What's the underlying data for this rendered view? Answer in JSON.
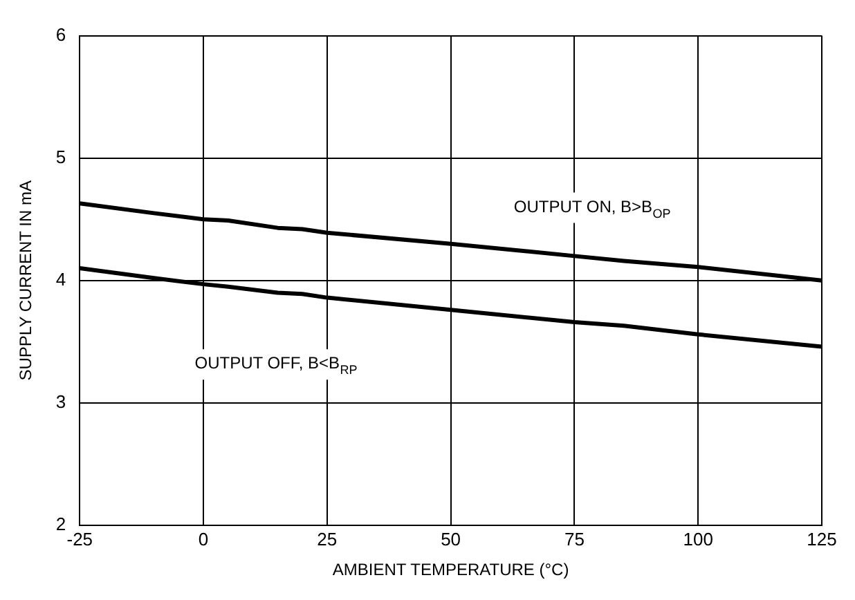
{
  "chart_data": {
    "type": "line",
    "xlabel": "AMBIENT TEMPERATURE (°C)",
    "ylabel": "SUPPLY CURRENT IN mA",
    "x": [
      -25,
      -10,
      0,
      5,
      15,
      20,
      25,
      50,
      75,
      85,
      100,
      125
    ],
    "series": [
      {
        "color": "#000000",
        "values": [
          4.63,
          4.55,
          4.5,
          4.49,
          4.43,
          4.42,
          4.39,
          4.3,
          4.2,
          4.16,
          4.11,
          4.0
        ]
      },
      {
        "color": "#000000",
        "values": [
          4.1,
          4.02,
          3.97,
          3.95,
          3.9,
          3.89,
          3.86,
          3.76,
          3.66,
          3.63,
          3.56,
          3.46
        ]
      }
    ],
    "xlim": [
      -25,
      125
    ],
    "xticks": [
      -25,
      0,
      25,
      50,
      75,
      100,
      125
    ],
    "ylim": [
      2,
      6
    ],
    "yticks": [
      2,
      3,
      4,
      5,
      6
    ],
    "grid": true,
    "legend": false,
    "marker": "none",
    "line_style": "solid",
    "annotations": [
      "OUTPUT ON, B>B$_{OP}$",
      "OUTPUT OFF, B<B$_{RP}$"
    ]
  }
}
